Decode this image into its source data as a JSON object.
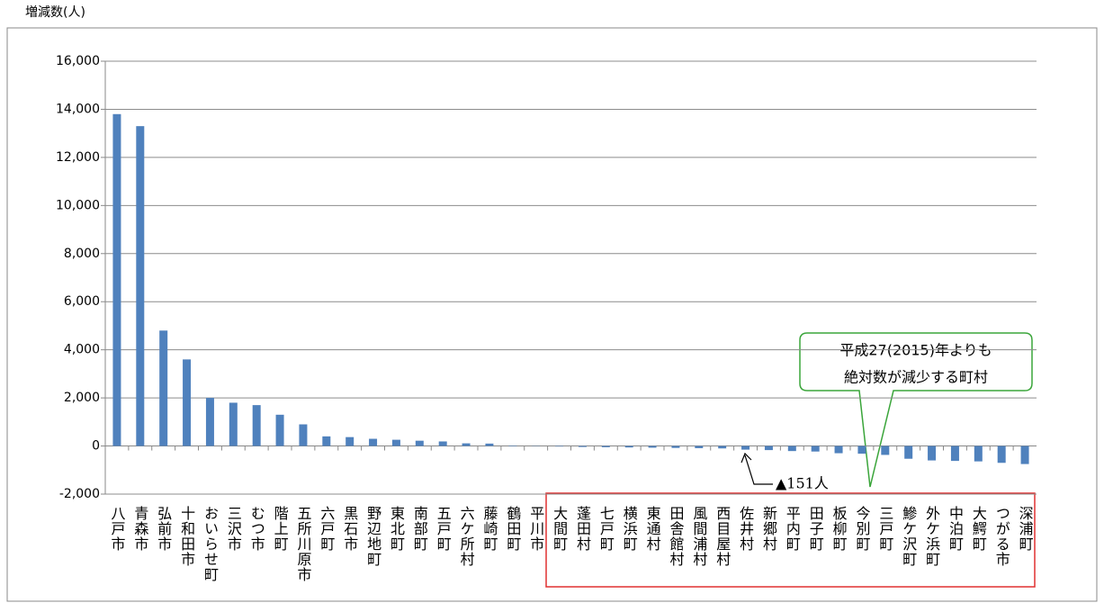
{
  "chart_data": {
    "type": "bar",
    "y_label": "増減数(人)",
    "categories": [
      "八戸市",
      "青森市",
      "弘前市",
      "十和田市",
      "おいらせ町",
      "三沢市",
      "むつ市",
      "階上町",
      "五所川原市",
      "六戸町",
      "黒石市",
      "野辺地町",
      "東北町",
      "南部町",
      "五戸町",
      "六ケ所村",
      "藤崎町",
      "鶴田町",
      "平川市",
      "大間町",
      "蓬田村",
      "七戸町",
      "横浜町",
      "東通村",
      "田舎館村",
      "風間浦村",
      "西目屋村",
      "佐井村",
      "新郷村",
      "平内町",
      "田子町",
      "板柳町",
      "今別町",
      "三戸町",
      "鰺ケ沢町",
      "外ケ浜町",
      "中泊町",
      "大鰐町",
      "つがる市",
      "深浦町"
    ],
    "values": [
      13800,
      13300,
      4800,
      3600,
      2000,
      1800,
      1700,
      1300,
      900,
      400,
      370,
      300,
      260,
      220,
      190,
      110,
      100,
      20,
      10,
      -20,
      -40,
      -50,
      -60,
      -70,
      -80,
      -90,
      -100,
      -151,
      -170,
      -210,
      -230,
      -300,
      -320,
      -370,
      -530,
      -600,
      -620,
      -640,
      -700,
      -750
    ],
    "color": "#4f81bd",
    "ylim": [
      -2000,
      16000
    ],
    "yticks": [
      {
        "value": -2000,
        "label": "-2,000"
      },
      0,
      {
        "value": 2000,
        "label": "2,000"
      },
      {
        "value": 4000,
        "label": "4,000"
      },
      {
        "value": 6000,
        "label": "6,000"
      },
      {
        "value": 8000,
        "label": "8,000"
      },
      {
        "value": 10000,
        "label": "10,000"
      },
      {
        "value": 12000,
        "label": "12,000"
      },
      {
        "value": 14000,
        "label": "14,000"
      },
      {
        "value": 16000,
        "label": "16,000"
      }
    ],
    "grid": true,
    "annotations": [
      "平成27(2015)年よりも",
      "絶対数が減少する町村",
      "▲151人"
    ]
  }
}
